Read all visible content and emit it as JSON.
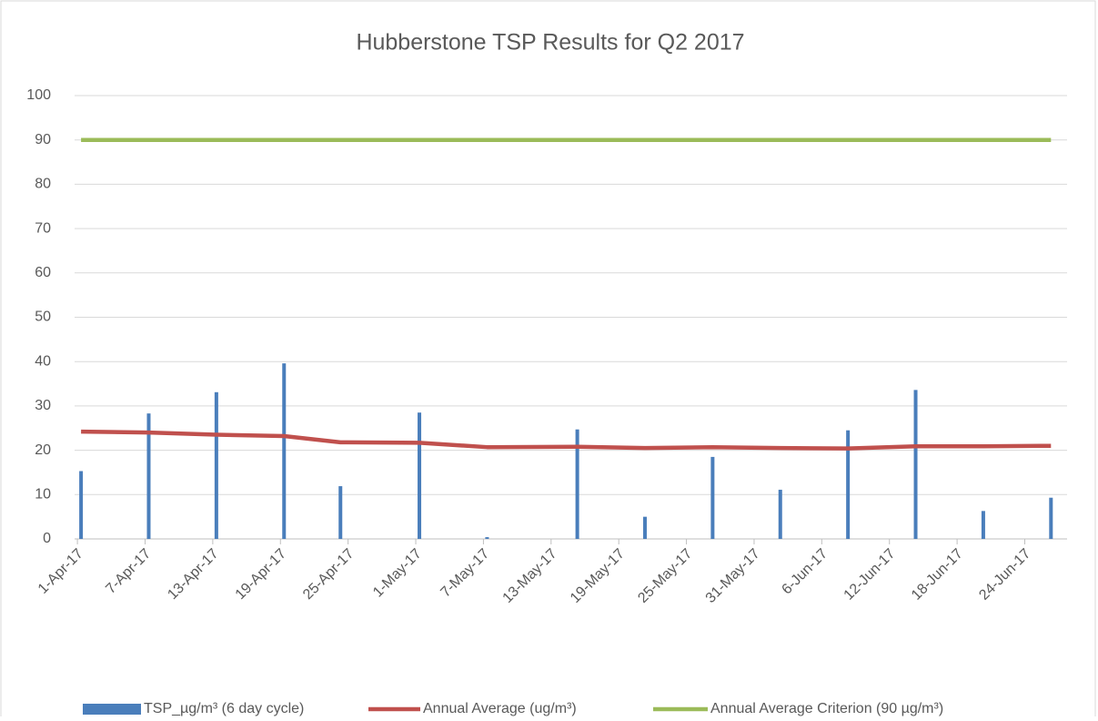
{
  "chart_data": {
    "type": "bar_line",
    "title": "Hubberstone TSP Results for Q2 2017",
    "categories": [
      "1-Apr-17",
      null,
      null,
      null,
      null,
      null,
      "7-Apr-17",
      null,
      null,
      null,
      null,
      null,
      "13-Apr-17",
      null,
      null,
      null,
      null,
      null,
      "19-Apr-17",
      null,
      null,
      null,
      null,
      null,
      "25-Apr-17",
      null,
      null,
      null,
      null,
      null,
      "1-May-17",
      null,
      null,
      null,
      null,
      null,
      "7-May-17",
      null,
      null,
      null,
      null,
      null,
      "13-May-17",
      null,
      null,
      null,
      null,
      null,
      "19-May-17",
      null,
      null,
      null,
      null,
      null,
      "25-May-17",
      null,
      null,
      null,
      null,
      null,
      "31-May-17",
      null,
      null,
      null,
      null,
      null,
      "6-Jun-17",
      null,
      null,
      null,
      null,
      null,
      "12-Jun-17",
      null,
      null,
      null,
      null,
      null,
      "18-Jun-17",
      null,
      null,
      null,
      null,
      null,
      "24-Jun-17",
      null,
      null,
      null
    ],
    "series": [
      {
        "name": "TSP_µg/m³ (6 day cycle)",
        "kind": "bar",
        "color": "#4a7ebb",
        "values": [
          15.3,
          null,
          null,
          null,
          null,
          null,
          28.3,
          null,
          null,
          null,
          null,
          null,
          33.1,
          null,
          null,
          null,
          null,
          null,
          39.6,
          null,
          null,
          null,
          null,
          11.9,
          null,
          null,
          null,
          null,
          null,
          null,
          28.5,
          null,
          null,
          null,
          null,
          null,
          0.4,
          null,
          null,
          null,
          null,
          null,
          null,
          null,
          24.7,
          null,
          null,
          null,
          null,
          null,
          5.0,
          null,
          null,
          null,
          null,
          null,
          18.5,
          null,
          null,
          null,
          null,
          null,
          11.1,
          null,
          null,
          null,
          null,
          null,
          24.5,
          null,
          null,
          null,
          null,
          null,
          33.6,
          null,
          null,
          null,
          null,
          null,
          6.3,
          null,
          null,
          null,
          null,
          null,
          9.3,
          null
        ]
      },
      {
        "name": "Annual Average (ug/m³)",
        "kind": "line",
        "color": "#c0504d",
        "values": [
          24.2,
          null,
          null,
          null,
          null,
          null,
          24.0,
          null,
          null,
          null,
          null,
          null,
          23.5,
          null,
          null,
          null,
          null,
          null,
          23.2,
          null,
          null,
          null,
          null,
          21.8,
          null,
          null,
          null,
          null,
          null,
          null,
          21.7,
          null,
          null,
          null,
          null,
          null,
          20.7,
          null,
          null,
          null,
          null,
          null,
          null,
          null,
          20.8,
          null,
          null,
          null,
          null,
          null,
          20.5,
          null,
          null,
          null,
          null,
          null,
          20.7,
          null,
          null,
          null,
          null,
          null,
          20.5,
          null,
          null,
          null,
          null,
          null,
          20.4,
          null,
          null,
          null,
          null,
          null,
          20.9,
          null,
          null,
          null,
          null,
          null,
          20.9,
          null,
          null,
          null,
          null,
          null,
          21.0,
          null
        ]
      },
      {
        "name": "Annual Average Criterion (90 µg/m³)",
        "kind": "line",
        "color": "#9bbb59",
        "values": [
          90,
          null,
          null,
          null,
          null,
          null,
          90,
          null,
          null,
          null,
          null,
          null,
          90,
          null,
          null,
          null,
          null,
          null,
          90,
          null,
          null,
          null,
          null,
          90,
          null,
          null,
          null,
          null,
          null,
          null,
          90,
          null,
          null,
          null,
          null,
          null,
          90,
          null,
          null,
          null,
          null,
          null,
          null,
          null,
          90,
          null,
          null,
          null,
          null,
          null,
          90,
          null,
          null,
          null,
          null,
          null,
          90,
          null,
          null,
          null,
          null,
          null,
          90,
          null,
          null,
          null,
          null,
          null,
          90,
          null,
          null,
          null,
          null,
          null,
          90,
          null,
          null,
          null,
          null,
          null,
          90,
          null,
          null,
          null,
          null,
          null,
          90,
          null
        ]
      }
    ],
    "span_gaps": true,
    "ylim": [
      0,
      100
    ],
    "yticks": [
      0,
      10,
      20,
      30,
      40,
      50,
      60,
      70,
      80,
      90,
      100
    ],
    "grid": true,
    "legend": "bottom"
  }
}
